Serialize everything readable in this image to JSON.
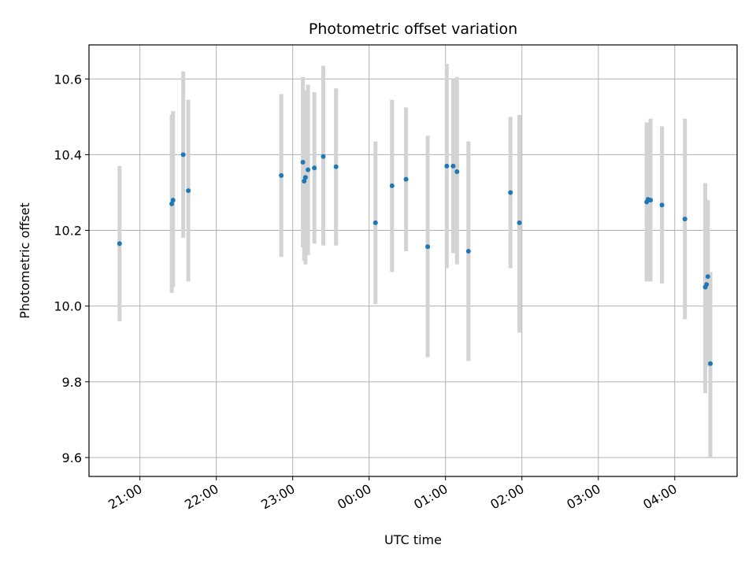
{
  "chart_data": {
    "type": "scatter",
    "title": "Photometric offset variation",
    "xlabel": "UTC time",
    "ylabel": "Photometric offset",
    "x_unit": "UTC date-time",
    "xlim": [
      "2024-01-01T20:20",
      "2024-01-02T04:49"
    ],
    "ylim": [
      9.55,
      10.69
    ],
    "x_ticks": [
      {
        "t": "2024-01-01T21:00",
        "label": "21:00"
      },
      {
        "t": "2024-01-01T22:00",
        "label": "22:00"
      },
      {
        "t": "2024-01-01T23:00",
        "label": "23:00"
      },
      {
        "t": "2024-01-02T00:00",
        "label": "00:00"
      },
      {
        "t": "2024-01-02T01:00",
        "label": "01:00"
      },
      {
        "t": "2024-01-02T02:00",
        "label": "02:00"
      },
      {
        "t": "2024-01-02T03:00",
        "label": "03:00"
      },
      {
        "t": "2024-01-02T04:00",
        "label": "04:00"
      }
    ],
    "y_ticks": [
      {
        "v": 9.6,
        "label": "9.6"
      },
      {
        "v": 9.8,
        "label": "9.8"
      },
      {
        "v": 10.0,
        "label": "10.0"
      },
      {
        "v": 10.2,
        "label": "10.2"
      },
      {
        "v": 10.4,
        "label": "10.4"
      },
      {
        "v": 10.6,
        "label": "10.6"
      }
    ],
    "grid": true,
    "point_color": "#1f77b4",
    "errorbar_color": "#d3d3d3",
    "points": [
      {
        "t": "2024-01-01T20:44",
        "y": 10.165,
        "lo": 9.96,
        "hi": 10.37
      },
      {
        "t": "2024-01-01T21:25",
        "y": 10.27,
        "lo": 10.035,
        "hi": 10.505
      },
      {
        "t": "2024-01-01T21:26",
        "y": 10.28,
        "lo": 10.05,
        "hi": 10.515
      },
      {
        "t": "2024-01-01T21:34",
        "y": 10.4,
        "lo": 10.18,
        "hi": 10.62
      },
      {
        "t": "2024-01-01T21:38",
        "y": 10.305,
        "lo": 10.065,
        "hi": 10.545
      },
      {
        "t": "2024-01-01T22:51",
        "y": 10.345,
        "lo": 10.13,
        "hi": 10.56
      },
      {
        "t": "2024-01-01T23:08",
        "y": 10.38,
        "lo": 10.155,
        "hi": 10.605
      },
      {
        "t": "2024-01-01T23:09",
        "y": 10.33,
        "lo": 10.12,
        "hi": 10.57
      },
      {
        "t": "2024-01-01T23:10",
        "y": 10.34,
        "lo": 10.11,
        "hi": 10.57
      },
      {
        "t": "2024-01-01T23:12",
        "y": 10.36,
        "lo": 10.135,
        "hi": 10.585
      },
      {
        "t": "2024-01-01T23:17",
        "y": 10.365,
        "lo": 10.165,
        "hi": 10.565
      },
      {
        "t": "2024-01-01T23:24",
        "y": 10.395,
        "lo": 10.16,
        "hi": 10.635
      },
      {
        "t": "2024-01-01T23:34",
        "y": 10.368,
        "lo": 10.16,
        "hi": 10.575
      },
      {
        "t": "2024-01-02T00:05",
        "y": 10.22,
        "lo": 10.005,
        "hi": 10.435
      },
      {
        "t": "2024-01-02T00:18",
        "y": 10.318,
        "lo": 10.09,
        "hi": 10.545
      },
      {
        "t": "2024-01-02T00:29",
        "y": 10.335,
        "lo": 10.145,
        "hi": 10.525
      },
      {
        "t": "2024-01-02T00:46",
        "y": 10.157,
        "lo": 9.865,
        "hi": 10.45
      },
      {
        "t": "2024-01-02T01:01",
        "y": 10.37,
        "lo": 10.1,
        "hi": 10.64
      },
      {
        "t": "2024-01-02T01:06",
        "y": 10.37,
        "lo": 10.14,
        "hi": 10.6
      },
      {
        "t": "2024-01-02T01:09",
        "y": 10.355,
        "lo": 10.11,
        "hi": 10.605
      },
      {
        "t": "2024-01-02T01:18",
        "y": 10.145,
        "lo": 9.855,
        "hi": 10.435
      },
      {
        "t": "2024-01-02T01:51",
        "y": 10.3,
        "lo": 10.1,
        "hi": 10.5
      },
      {
        "t": "2024-01-02T01:58",
        "y": 10.22,
        "lo": 9.93,
        "hi": 10.505
      },
      {
        "t": "2024-01-02T03:38",
        "y": 10.275,
        "lo": 10.065,
        "hi": 10.485
      },
      {
        "t": "2024-01-02T03:39",
        "y": 10.282,
        "lo": 10.09,
        "hi": 10.475
      },
      {
        "t": "2024-01-02T03:41",
        "y": 10.28,
        "lo": 10.065,
        "hi": 10.495
      },
      {
        "t": "2024-01-02T03:50",
        "y": 10.267,
        "lo": 10.06,
        "hi": 10.475
      },
      {
        "t": "2024-01-02T04:08",
        "y": 10.23,
        "lo": 9.965,
        "hi": 10.495
      },
      {
        "t": "2024-01-02T04:24",
        "y": 10.05,
        "lo": 9.77,
        "hi": 10.325
      },
      {
        "t": "2024-01-02T04:25",
        "y": 10.057,
        "lo": 9.84,
        "hi": 10.28
      },
      {
        "t": "2024-01-02T04:26",
        "y": 10.078,
        "lo": 9.855,
        "hi": 10.28
      },
      {
        "t": "2024-01-02T04:28",
        "y": 9.848,
        "lo": 9.6,
        "hi": 10.09
      }
    ]
  }
}
